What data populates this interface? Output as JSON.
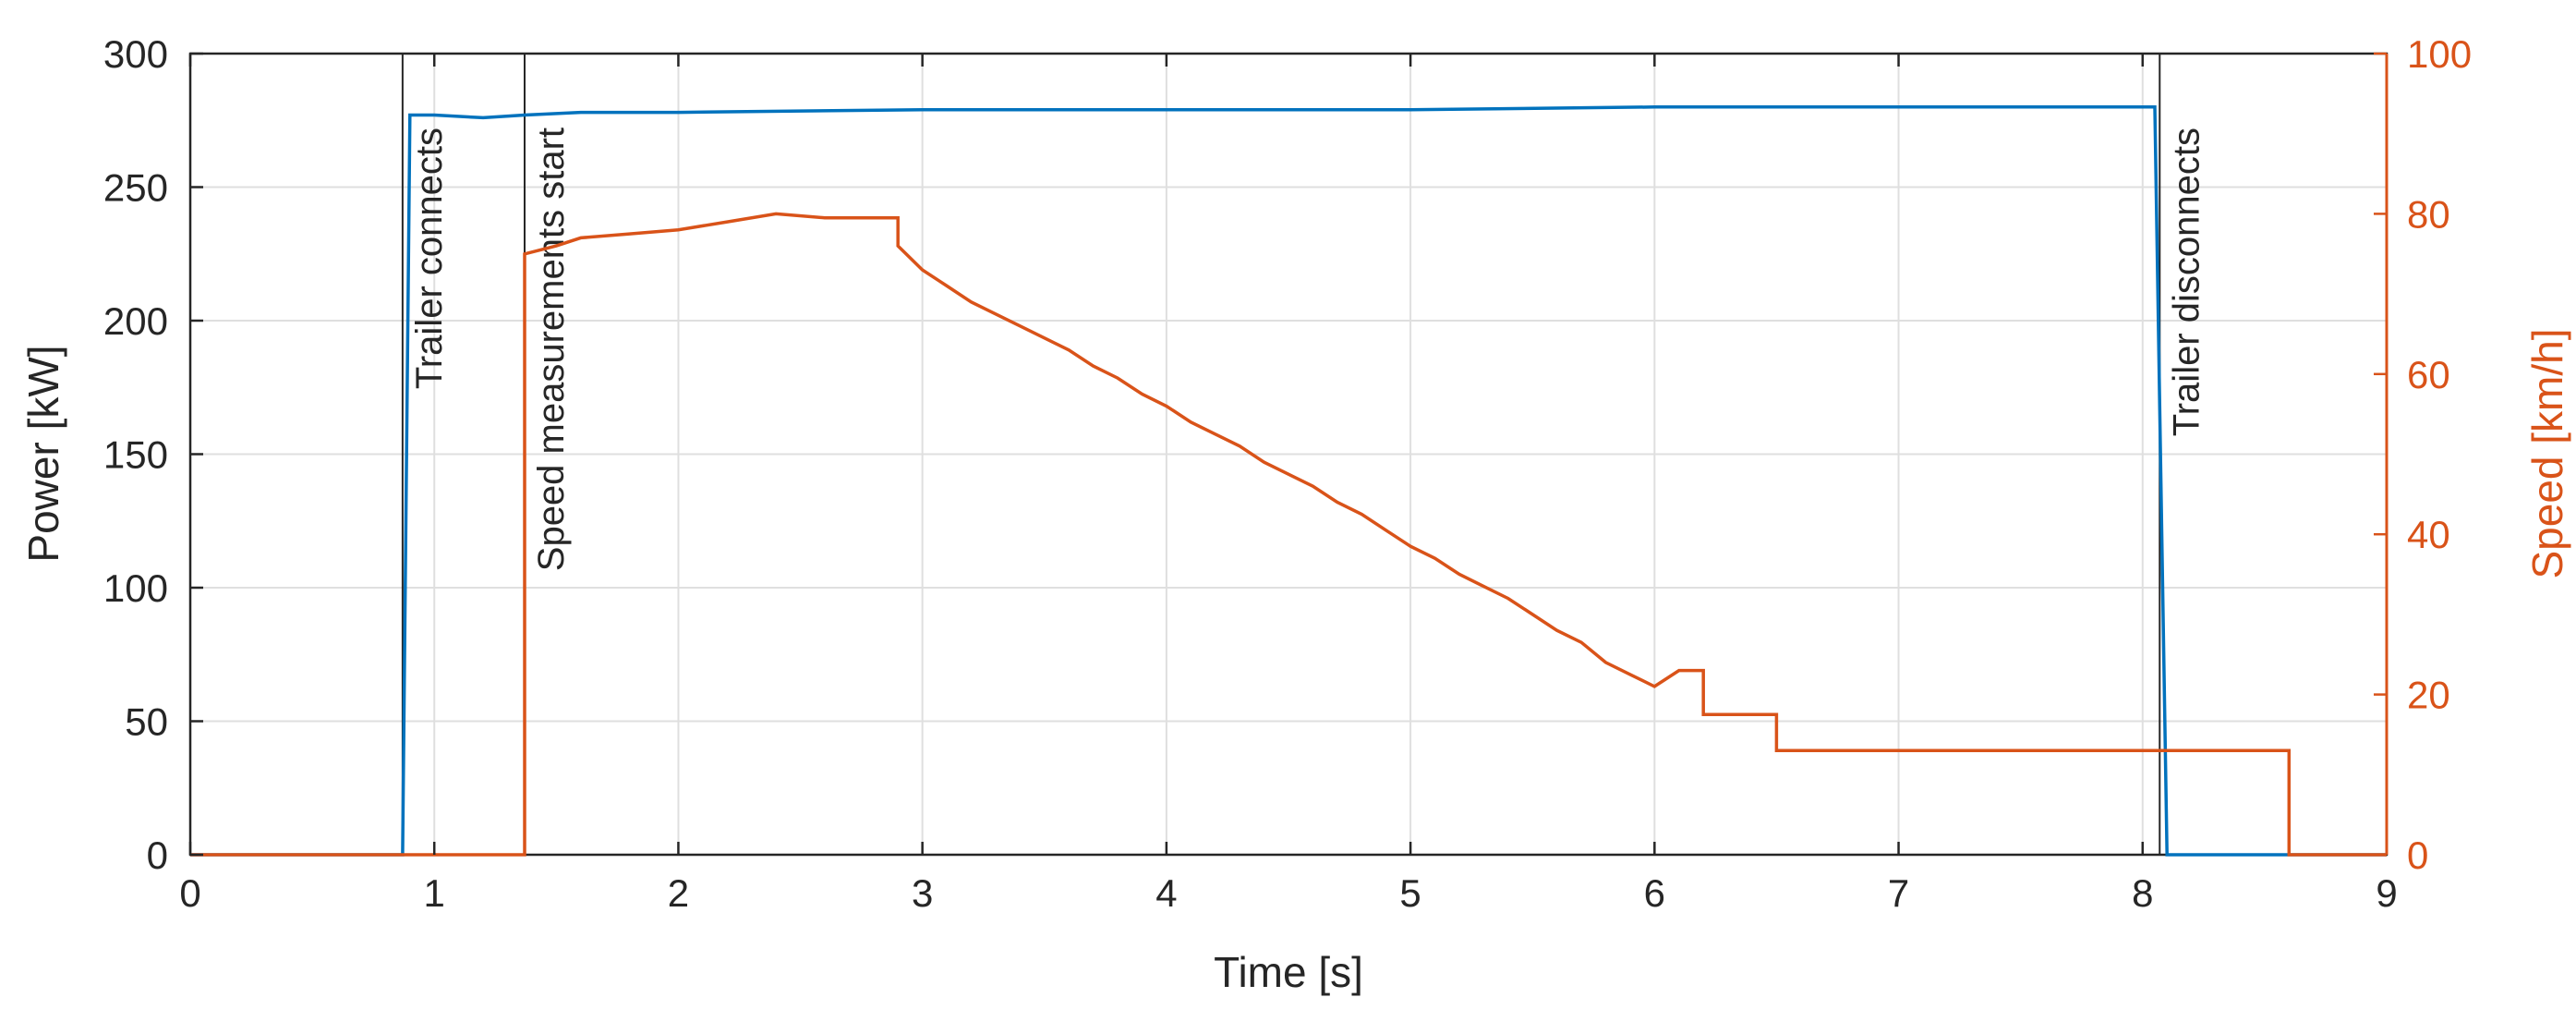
{
  "chart_data": {
    "type": "line",
    "xlabel": "Time [s]",
    "ylabel": "Power [kW]",
    "y2label": "Speed [km/h]",
    "xlim": [
      0,
      9
    ],
    "ylim": [
      0,
      300
    ],
    "y2lim": [
      0,
      100
    ],
    "grid": true,
    "x_ticks": [
      "0",
      "1",
      "2",
      "3",
      "4",
      "5",
      "6",
      "7",
      "8",
      "9"
    ],
    "y_ticks": [
      "0",
      "50",
      "100",
      "150",
      "200",
      "250",
      "300"
    ],
    "y2_ticks": [
      "0",
      "20",
      "40",
      "60",
      "80",
      "100"
    ],
    "colors": {
      "power": "#0072bd",
      "speed": "#d95319",
      "event": "#262626"
    },
    "events": [
      {
        "x": 0.87,
        "label": "Trailer connects"
      },
      {
        "x": 1.37,
        "label": "Speed measurements start"
      },
      {
        "x": 8.07,
        "label": "Trailer disconnects"
      }
    ],
    "series": [
      {
        "axis": "left",
        "color": "#0072bd",
        "x": [
          0.0,
          0.87,
          0.9,
          1.0,
          1.2,
          1.37,
          1.6,
          2.0,
          3.0,
          4.0,
          5.0,
          6.0,
          7.0,
          8.05,
          8.1,
          9.0
        ],
        "y": [
          0,
          0,
          277,
          277,
          276,
          277,
          278,
          278,
          279,
          279,
          279,
          280,
          280,
          280,
          0,
          0
        ]
      },
      {
        "axis": "right",
        "color": "#d95319",
        "x": [
          0.0,
          1.37,
          1.37,
          1.5,
          1.6,
          1.8,
          2.0,
          2.2,
          2.4,
          2.6,
          2.9,
          2.9,
          3.0,
          3.1,
          3.2,
          3.3,
          3.4,
          3.5,
          3.6,
          3.7,
          3.8,
          3.9,
          4.0,
          4.1,
          4.2,
          4.3,
          4.4,
          4.5,
          4.6,
          4.7,
          4.8,
          4.9,
          5.0,
          5.1,
          5.2,
          5.3,
          5.4,
          5.5,
          5.6,
          5.7,
          5.8,
          5.9,
          6.0,
          6.1,
          6.2,
          6.2,
          6.5,
          6.5,
          8.6,
          8.6,
          9.0
        ],
        "y": [
          0,
          0,
          75,
          76,
          77,
          77.5,
          78,
          79,
          80,
          79.5,
          79.5,
          76,
          73,
          71,
          69,
          67.5,
          66,
          64.5,
          63,
          61,
          59.5,
          57.5,
          56,
          54,
          52.5,
          51,
          49,
          47.5,
          46,
          44,
          42.5,
          40.5,
          38.5,
          37,
          35,
          33.5,
          32,
          30,
          28,
          26.5,
          24,
          22.5,
          21,
          23,
          23,
          17.5,
          17.5,
          13,
          13,
          0,
          0
        ]
      }
    ]
  }
}
